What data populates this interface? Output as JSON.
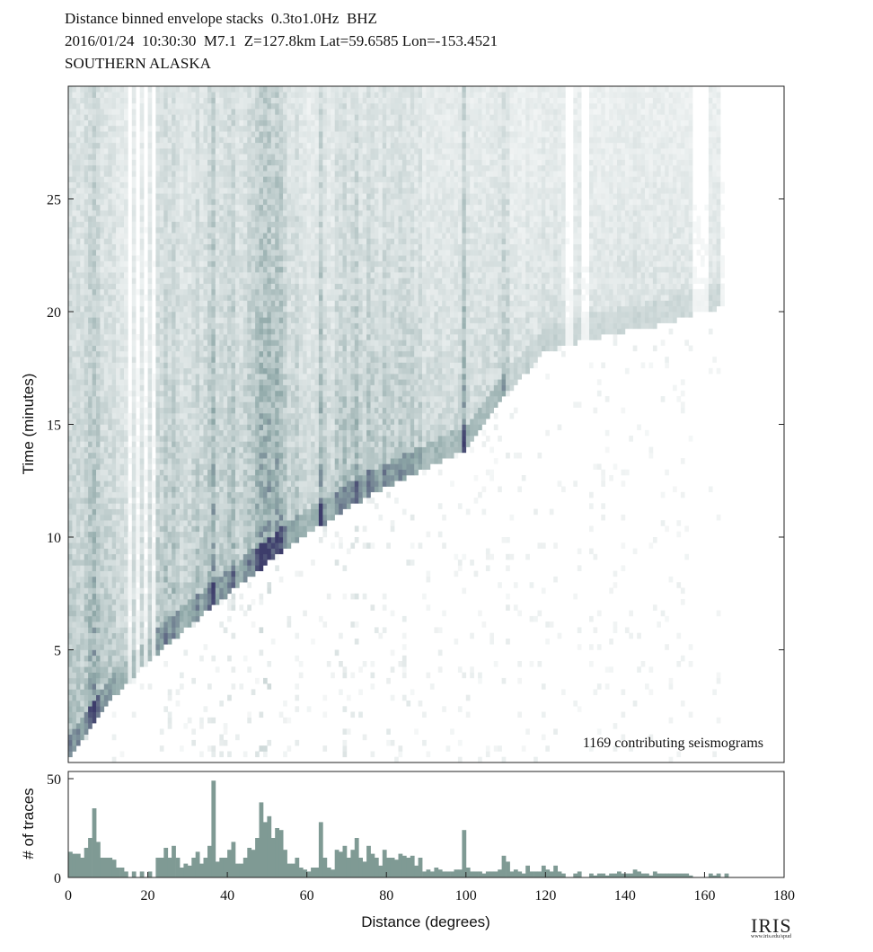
{
  "header": {
    "line1": "Distance binned envelope stacks  0.3to1.0Hz  BHZ",
    "line2": "2016/01/24  10:30:30  M7.1  Z=127.8km Lat=59.6585 Lon=-153.4521",
    "line3": "SOUTHERN ALASKA"
  },
  "logo": {
    "text": "IRIS",
    "url": "www.iris.edu/spud"
  },
  "chart_data": [
    {
      "type": "heatmap",
      "title": "Distance binned envelope stacks  0.3to1.0Hz  BHZ",
      "ylabel": "Time (minutes)",
      "xlim": [
        0,
        180
      ],
      "ylim": [
        0,
        30
      ],
      "yticks": [
        5,
        10,
        15,
        20,
        25
      ],
      "annotation": "1169 contributing seismograms",
      "colors": {
        "low": "#ffffff",
        "mid": "#8fa8a8",
        "high": "#3d3d6b"
      },
      "coverage_max_distance": 165,
      "first_arrival_curve": {
        "x": [
          0,
          5,
          10,
          15,
          20,
          30,
          40,
          50,
          60,
          70,
          80,
          90,
          100,
          110,
          120,
          130,
          140,
          150,
          160,
          165
        ],
        "y": [
          0.3,
          1.5,
          2.8,
          3.7,
          4.6,
          6.2,
          7.6,
          9.0,
          10.3,
          11.4,
          12.4,
          13.2,
          14.0,
          16.5,
          18.4,
          18.9,
          19.3,
          19.6,
          20.2,
          20.4
        ]
      }
    },
    {
      "type": "bar",
      "xlabel": "Distance (degrees)",
      "ylabel": "# of traces",
      "xlim": [
        0,
        180
      ],
      "ylim": [
        0,
        50
      ],
      "xticks": [
        0,
        20,
        40,
        60,
        80,
        100,
        120,
        140,
        160,
        180
      ],
      "yticks": [
        0,
        50
      ],
      "color": "#7f9a94",
      "bin_width": 1,
      "x": [
        0,
        1,
        2,
        3,
        4,
        5,
        6,
        7,
        8,
        9,
        10,
        11,
        12,
        13,
        14,
        15,
        16,
        17,
        18,
        19,
        20,
        21,
        22,
        23,
        24,
        25,
        26,
        27,
        28,
        29,
        30,
        31,
        32,
        33,
        34,
        35,
        36,
        37,
        38,
        39,
        40,
        41,
        42,
        43,
        44,
        45,
        46,
        47,
        48,
        49,
        50,
        51,
        52,
        53,
        54,
        55,
        56,
        57,
        58,
        59,
        60,
        61,
        62,
        63,
        64,
        65,
        66,
        67,
        68,
        69,
        70,
        71,
        72,
        73,
        74,
        75,
        76,
        77,
        78,
        79,
        80,
        81,
        82,
        83,
        84,
        85,
        86,
        87,
        88,
        89,
        90,
        91,
        92,
        93,
        94,
        95,
        96,
        97,
        98,
        99,
        100,
        101,
        102,
        103,
        104,
        105,
        106,
        107,
        108,
        109,
        110,
        111,
        112,
        113,
        114,
        115,
        116,
        117,
        118,
        119,
        120,
        121,
        122,
        123,
        124,
        125,
        126,
        127,
        128,
        129,
        130,
        131,
        132,
        133,
        134,
        135,
        136,
        137,
        138,
        139,
        140,
        141,
        142,
        143,
        144,
        145,
        146,
        147,
        148,
        149,
        150,
        151,
        152,
        153,
        154,
        155,
        156,
        157,
        158,
        159,
        160,
        161,
        162,
        163,
        164,
        165
      ],
      "values": [
        13,
        12,
        12,
        10,
        15,
        20,
        35,
        18,
        10,
        10,
        10,
        9,
        5,
        5,
        3,
        0,
        3,
        0,
        3,
        0,
        3,
        0,
        10,
        10,
        15,
        10,
        16,
        10,
        5,
        7,
        6,
        10,
        13,
        7,
        10,
        16,
        49,
        8,
        10,
        10,
        14,
        18,
        7,
        7,
        10,
        15,
        14,
        20,
        38,
        28,
        31,
        20,
        25,
        24,
        14,
        7,
        7,
        10,
        5,
        4,
        3,
        5,
        5,
        28,
        10,
        5,
        4,
        14,
        13,
        16,
        10,
        14,
        20,
        10,
        8,
        16,
        12,
        10,
        6,
        14,
        10,
        10,
        9,
        12,
        11,
        10,
        11,
        6,
        10,
        3,
        4,
        3,
        5,
        4,
        3,
        3,
        3,
        4,
        4,
        24,
        5,
        3,
        3,
        3,
        2,
        3,
        3,
        3,
        4,
        11,
        8,
        3,
        4,
        3,
        2,
        6,
        3,
        3,
        3,
        6,
        4,
        3,
        6,
        3,
        2,
        0,
        0,
        2,
        3,
        0,
        0,
        2,
        1,
        2,
        2,
        1,
        2,
        2,
        3,
        2,
        2,
        2,
        4,
        3,
        2,
        2,
        1,
        3,
        2,
        2,
        2,
        2,
        2,
        2,
        2,
        2,
        1,
        0,
        0,
        0,
        0,
        2,
        1,
        2,
        0,
        2
      ]
    }
  ]
}
